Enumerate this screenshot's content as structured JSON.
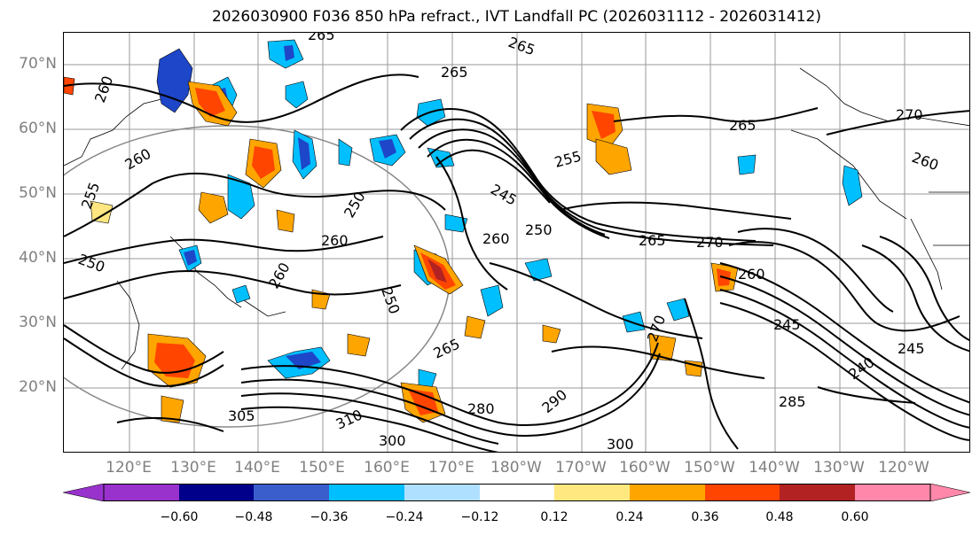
{
  "title": "2026030900 F036 850 hPa refract., IVT Landfall PC (2026031112 - 2026031412)",
  "map": {
    "lat_labels": [
      "70°N",
      "60°N",
      "50°N",
      "40°N",
      "30°N",
      "20°N"
    ],
    "lon_labels": [
      "120°E",
      "130°E",
      "140°E",
      "150°E",
      "160°E",
      "170°E",
      "180°W",
      "170°W",
      "160°W",
      "150°W",
      "140°W",
      "130°W",
      "120°W"
    ],
    "contour_labels": [
      "265",
      "265",
      "260",
      "265",
      "255",
      "260",
      "245",
      "250",
      "255",
      "250",
      "260",
      "265",
      "270",
      "265",
      "270",
      "260",
      "260",
      "250",
      "260",
      "260",
      "245",
      "245",
      "265",
      "285",
      "280",
      "300",
      "300",
      "305",
      "310",
      "290",
      "240",
      "270",
      "250"
    ],
    "fill_colors": {
      "neg_strong": "#1e46c8",
      "neg_mid": "#00bfff",
      "neg_light": "#aee1ff",
      "pos_light": "#ffe680",
      "pos_mid": "#ffa500",
      "pos_strong": "#ff4500",
      "pos_max": "#b22222"
    }
  },
  "colorbar": {
    "colors": [
      "#9932cc",
      "#00008b",
      "#3a5fcd",
      "#00bfff",
      "#b0e0ff",
      "#ffffff",
      "#ffe880",
      "#ffa500",
      "#ff4500",
      "#b22222",
      "#ff88aa"
    ],
    "ticks": [
      "−0.60",
      "−0.48",
      "−0.36",
      "−0.24",
      "−0.12",
      "0.12",
      "0.24",
      "0.36",
      "0.48",
      "0.60"
    ]
  }
}
